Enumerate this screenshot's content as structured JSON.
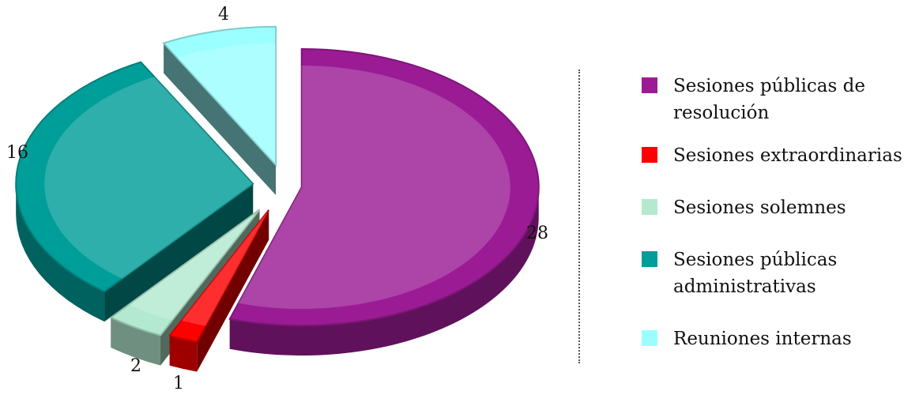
{
  "chart_data": {
    "type": "pie",
    "style": "3d-exploded",
    "title": "",
    "slices": [
      {
        "label": "Sesiones públicas de resolución",
        "value": 28,
        "data_label": "28",
        "color": "#9B1B95"
      },
      {
        "label": "Sesiones extraordinarias",
        "value": 1,
        "data_label": "1",
        "color": "#FF0000"
      },
      {
        "label": "Sesiones solemnes",
        "value": 2,
        "data_label": "2",
        "color": "#B3E9CF"
      },
      {
        "label": "Sesiones públicas administrativas",
        "value": 16,
        "data_label": "16",
        "color": "#009E99"
      },
      {
        "label": "Reuniones internas",
        "value": 4,
        "data_label": "4",
        "color": "#9CFFFF"
      }
    ],
    "legend_position": "right"
  },
  "legend": {
    "items": [
      {
        "label": "Sesiones públicas de resolución",
        "color": "#9B1B95"
      },
      {
        "label": "Sesiones extraordinarias",
        "color": "#FF0000"
      },
      {
        "label": "Sesiones solemnes",
        "color": "#B3E9CF"
      },
      {
        "label": "Sesiones públicas administrativas",
        "color": "#009E99"
      },
      {
        "label": "Reuniones internas",
        "color": "#9CFFFF"
      }
    ]
  }
}
